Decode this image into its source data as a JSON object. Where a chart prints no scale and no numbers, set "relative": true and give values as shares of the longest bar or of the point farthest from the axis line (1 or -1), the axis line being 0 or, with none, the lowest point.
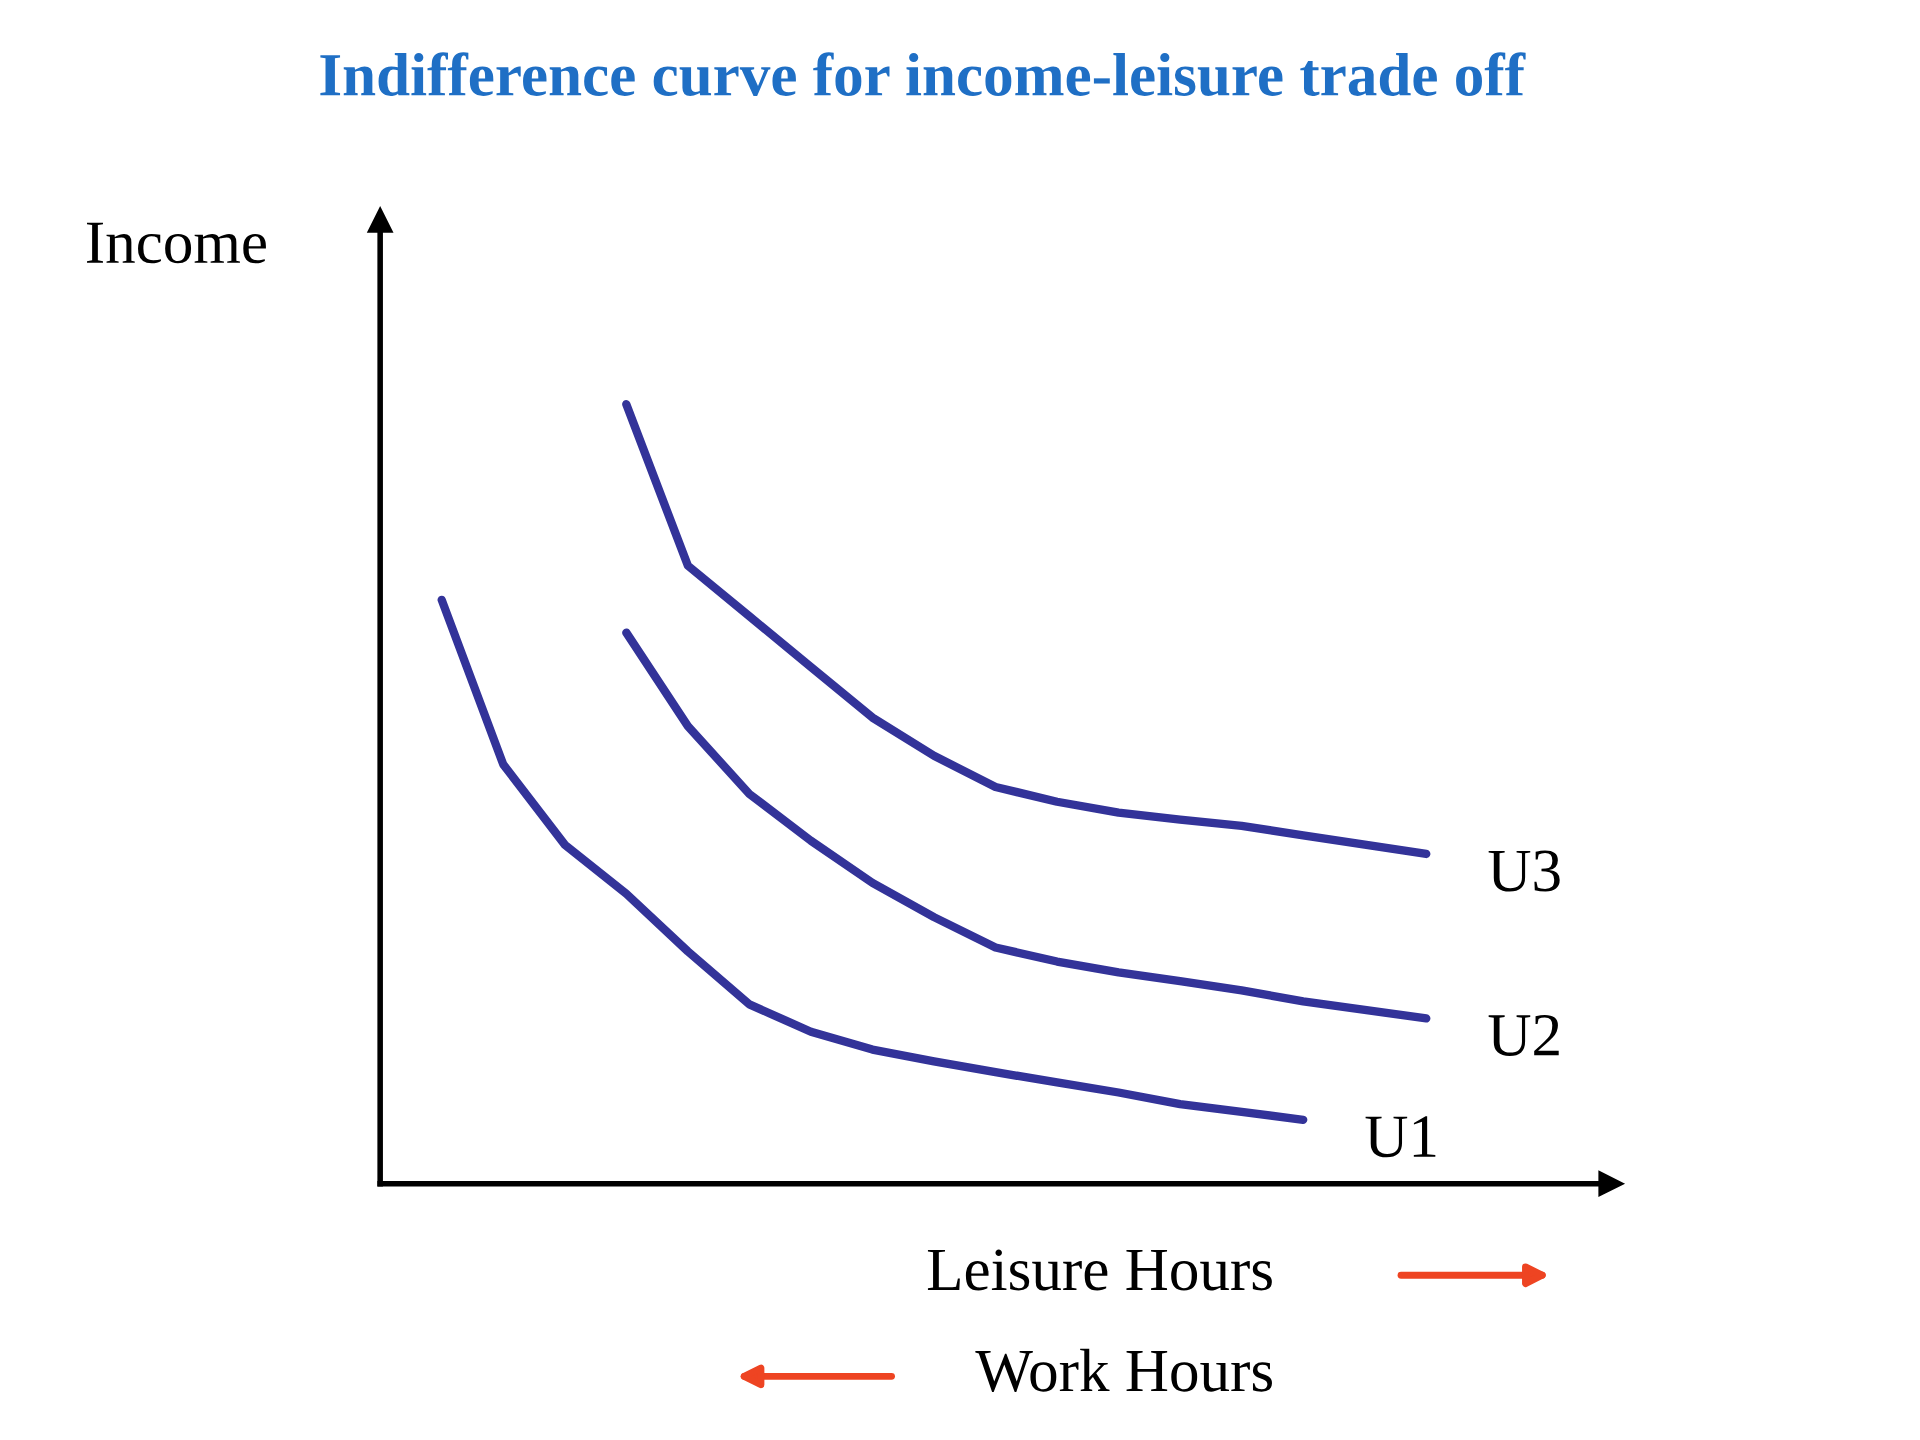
{
  "chart_data": {
    "type": "line",
    "title": "Indifference curve for income-leisure trade off",
    "xlabel": "Leisure Hours",
    "ylabel": "Income",
    "relative": true,
    "annotations": [
      "Work Hours"
    ],
    "categories": [
      null,
      null,
      null,
      null,
      null,
      null,
      null,
      null,
      null,
      null,
      null,
      null,
      null,
      null,
      null,
      null,
      null,
      null,
      null,
      null,
      null
    ],
    "series": [
      {
        "name": "U1",
        "color": "#333399",
        "values": [
          null,
          0.749,
          0.538,
          0.435,
          0.372,
          0.298,
          0.23,
          0.195,
          0.172,
          0.157,
          0.143,
          0.13,
          0.117,
          0.102,
          0.092,
          0.082,
          null,
          null,
          null,
          null,
          null
        ]
      },
      {
        "name": "U2",
        "color": "#333399",
        "values": [
          null,
          null,
          null,
          null,
          0.707,
          0.587,
          0.5,
          0.44,
          0.386,
          0.342,
          0.303,
          0.285,
          0.271,
          0.26,
          0.248,
          0.234,
          0.223,
          0.212,
          null,
          null,
          null
        ]
      },
      {
        "name": "U3",
        "color": "#333399",
        "values": [
          null,
          null,
          null,
          null,
          1,
          0.793,
          0.728,
          0.663,
          0.598,
          0.549,
          0.509,
          0.49,
          0.476,
          0.467,
          0.459,
          0.447,
          0.435,
          0.423,
          null,
          null,
          null
        ]
      }
    ]
  }
}
